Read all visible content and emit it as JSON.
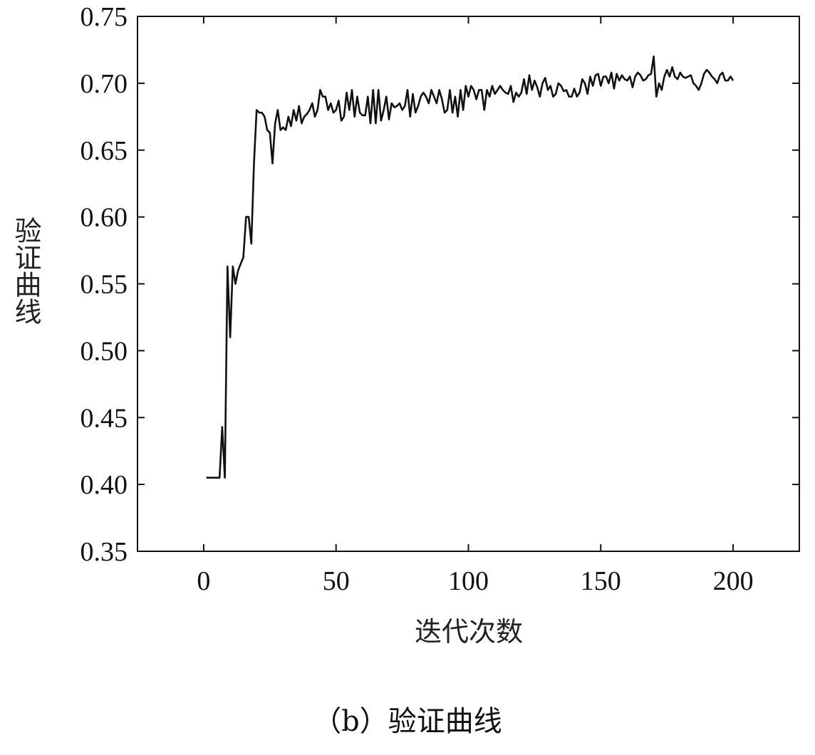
{
  "chart_data": {
    "type": "line",
    "xlabel": "迭代次数",
    "ylabel": "验证曲线",
    "caption": "（b）验证曲线",
    "xlim": [
      -25,
      225
    ],
    "ylim": [
      0.35,
      0.75
    ],
    "xticks": [
      0,
      50,
      100,
      150,
      200
    ],
    "xtick_labels": [
      "0",
      "50",
      "100",
      "150",
      "200"
    ],
    "yticks": [
      0.35,
      0.4,
      0.45,
      0.5,
      0.55,
      0.6,
      0.65,
      0.7,
      0.75
    ],
    "ytick_labels": [
      "0.35",
      "0.40",
      "0.45",
      "0.50",
      "0.55",
      "0.60",
      "0.65",
      "0.70",
      "0.75"
    ],
    "grid": false,
    "line_color": "#111111",
    "series": [
      {
        "x": [
          1,
          2,
          3,
          4,
          5,
          6,
          7,
          8,
          9,
          10,
          11,
          12,
          13,
          14,
          15,
          16,
          17,
          18,
          19,
          20,
          21,
          22,
          23,
          24,
          25,
          26,
          27,
          28,
          29,
          30,
          31,
          32,
          33,
          34,
          35,
          36,
          37,
          38,
          39,
          40,
          41,
          42,
          43,
          44,
          45,
          46,
          47,
          48,
          49,
          50,
          51,
          52,
          53,
          54,
          55,
          56,
          57,
          58,
          59,
          60,
          61,
          62,
          63,
          64,
          65,
          66,
          67,
          68,
          69,
          70,
          71,
          72,
          73,
          74,
          75,
          76,
          77,
          78,
          79,
          80,
          81,
          82,
          83,
          84,
          85,
          86,
          87,
          88,
          89,
          90,
          91,
          92,
          93,
          94,
          95,
          96,
          97,
          98,
          99,
          100,
          101,
          102,
          103,
          104,
          105,
          106,
          107,
          108,
          109,
          110,
          111,
          112,
          113,
          114,
          115,
          116,
          117,
          118,
          119,
          120,
          121,
          122,
          123,
          124,
          125,
          126,
          127,
          128,
          129,
          130,
          131,
          132,
          133,
          134,
          135,
          136,
          137,
          138,
          139,
          140,
          141,
          142,
          143,
          144,
          145,
          146,
          147,
          148,
          149,
          150,
          151,
          152,
          153,
          154,
          155,
          156,
          157,
          158,
          159,
          160,
          161,
          162,
          163,
          164,
          165,
          166,
          167,
          168,
          169,
          170,
          171,
          172,
          173,
          174,
          175,
          176,
          177,
          178,
          179,
          180,
          181,
          182,
          183,
          184,
          185,
          186,
          187,
          188,
          189,
          190,
          191,
          192,
          193,
          194,
          195,
          196,
          197,
          198,
          199,
          200
        ],
        "y": [
          0.405,
          0.405,
          0.405,
          0.405,
          0.405,
          0.405,
          0.443,
          0.405,
          0.563,
          0.51,
          0.563,
          0.55,
          0.56,
          0.565,
          0.57,
          0.6,
          0.6,
          0.58,
          0.64,
          0.68,
          0.678,
          0.678,
          0.675,
          0.665,
          0.663,
          0.64,
          0.67,
          0.68,
          0.665,
          0.667,
          0.665,
          0.675,
          0.668,
          0.68,
          0.672,
          0.683,
          0.67,
          0.675,
          0.677,
          0.68,
          0.685,
          0.675,
          0.68,
          0.695,
          0.69,
          0.69,
          0.68,
          0.685,
          0.678,
          0.68,
          0.687,
          0.672,
          0.675,
          0.693,
          0.68,
          0.695,
          0.675,
          0.69,
          0.678,
          0.676,
          0.676,
          0.69,
          0.67,
          0.695,
          0.67,
          0.695,
          0.672,
          0.68,
          0.69,
          0.673,
          0.685,
          0.682,
          0.683,
          0.685,
          0.68,
          0.683,
          0.695,
          0.675,
          0.692,
          0.678,
          0.683,
          0.69,
          0.693,
          0.69,
          0.685,
          0.695,
          0.69,
          0.685,
          0.695,
          0.688,
          0.678,
          0.68,
          0.695,
          0.678,
          0.69,
          0.675,
          0.695,
          0.68,
          0.698,
          0.69,
          0.698,
          0.695,
          0.688,
          0.695,
          0.695,
          0.68,
          0.695,
          0.69,
          0.698,
          0.692,
          0.695,
          0.698,
          0.695,
          0.693,
          0.692,
          0.698,
          0.686,
          0.693,
          0.69,
          0.693,
          0.703,
          0.692,
          0.706,
          0.695,
          0.702,
          0.697,
          0.69,
          0.7,
          0.704,
          0.695,
          0.698,
          0.69,
          0.692,
          0.7,
          0.698,
          0.694,
          0.695,
          0.69,
          0.69,
          0.696,
          0.69,
          0.693,
          0.703,
          0.7,
          0.692,
          0.705,
          0.698,
          0.706,
          0.707,
          0.698,
          0.705,
          0.705,
          0.7,
          0.708,
          0.696,
          0.707,
          0.702,
          0.706,
          0.703,
          0.702,
          0.705,
          0.697,
          0.705,
          0.708,
          0.706,
          0.702,
          0.703,
          0.706,
          0.707,
          0.72,
          0.69,
          0.7,
          0.695,
          0.705,
          0.71,
          0.705,
          0.712,
          0.705,
          0.703,
          0.708,
          0.705,
          0.704,
          0.705,
          0.706,
          0.7,
          0.698,
          0.695,
          0.7,
          0.707,
          0.71,
          0.708,
          0.705,
          0.703,
          0.7,
          0.706,
          0.708,
          0.702,
          0.702,
          0.705,
          0.702
        ]
      }
    ]
  }
}
